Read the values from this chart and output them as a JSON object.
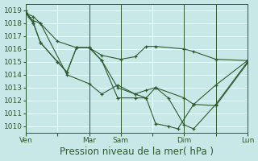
{
  "xlabel": "Pression niveau de la mer( hPa )",
  "bg_color": "#c8e8e8",
  "grid_color": "#ffffff",
  "line_color": "#2d5a2d",
  "marker_color": "#2d5a2d",
  "ylim": [
    1009.5,
    1019.5
  ],
  "yticks": [
    1010,
    1011,
    1012,
    1013,
    1014,
    1015,
    1016,
    1017,
    1018,
    1019
  ],
  "xtick_labels": [
    "Ven",
    "",
    "Mar",
    "Sam",
    "",
    "Dim",
    "",
    "Lun"
  ],
  "xtick_positions": [
    0,
    1,
    2,
    3,
    4,
    5,
    6,
    7
  ],
  "vline_positions": [
    0,
    2,
    3,
    5,
    6
  ],
  "lines": [
    {
      "x": [
        0.0,
        0.24,
        0.46,
        1.0,
        1.6,
        2.0,
        2.4,
        3.0,
        3.45,
        3.8,
        4.1,
        5.0,
        5.3,
        6.0,
        7.0
      ],
      "y": [
        1018.8,
        1018.5,
        1018.0,
        1016.6,
        1016.1,
        1016.1,
        1015.5,
        1015.2,
        1015.4,
        1016.2,
        1016.2,
        1016.0,
        1015.8,
        1015.2,
        1015.1
      ]
    },
    {
      "x": [
        0.0,
        0.24,
        0.46,
        1.0,
        1.3,
        1.6,
        2.0,
        2.4,
        2.9,
        3.45,
        3.8,
        4.1,
        5.0,
        5.3,
        6.0,
        7.0
      ],
      "y": [
        1018.8,
        1018.0,
        1016.5,
        1015.0,
        1014.2,
        1016.1,
        1016.1,
        1015.1,
        1013.0,
        1012.5,
        1012.8,
        1013.0,
        1012.2,
        1011.7,
        1011.6,
        1014.9
      ]
    },
    {
      "x": [
        0.0,
        0.24,
        0.46,
        1.0,
        1.3,
        1.6,
        2.0,
        2.4,
        2.9,
        3.45,
        3.8,
        4.1,
        4.5,
        5.0,
        5.3,
        6.0,
        7.0
      ],
      "y": [
        1018.8,
        1018.0,
        1016.5,
        1015.0,
        1014.2,
        1016.1,
        1016.1,
        1015.1,
        1012.2,
        1012.2,
        1012.2,
        1013.0,
        1012.2,
        1010.1,
        1009.8,
        1011.7,
        1015.0
      ]
    },
    {
      "x": [
        0.0,
        0.1,
        0.24,
        0.46,
        1.3,
        2.0,
        2.4,
        2.9,
        3.45,
        3.8,
        4.1,
        4.5,
        4.8,
        5.3,
        6.0,
        7.0
      ],
      "y": [
        1019.0,
        1018.5,
        1018.2,
        1018.0,
        1014.0,
        1013.3,
        1012.5,
        1013.2,
        1012.5,
        1012.2,
        1010.2,
        1010.0,
        1009.8,
        1011.7,
        1013.2,
        1015.1
      ]
    }
  ],
  "tick_font_size": 6.5,
  "xlabel_font_size": 8.5
}
